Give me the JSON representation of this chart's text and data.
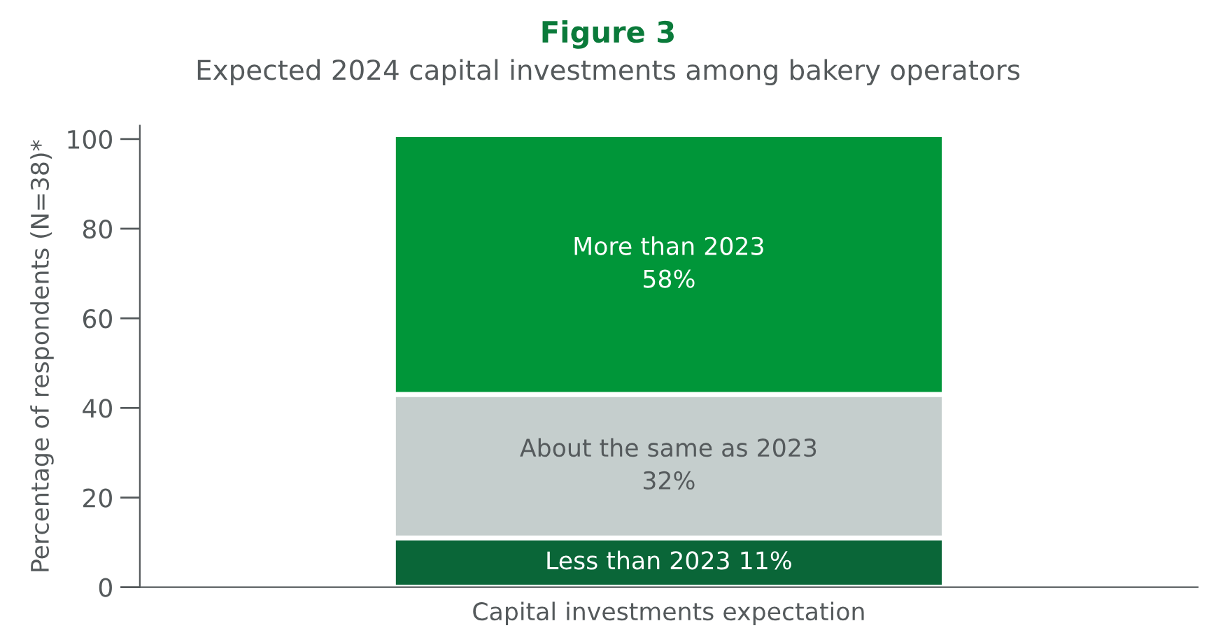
{
  "chart_data": {
    "type": "bar",
    "stacked": true,
    "title": "Figure 3",
    "subtitle": "Expected 2024 capital investments among bakery operators",
    "xlabel": "Capital investments expectation",
    "ylabel": "Percentage of respondents (N=38)*",
    "categories": [
      null
    ],
    "series": [
      {
        "name": "Less than 2023",
        "color": "#0a6638",
        "values": [
          11
        ],
        "value_labels": [
          "11%"
        ]
      },
      {
        "name": "About the same as 2023",
        "color": "#c5cecd",
        "values": [
          32
        ],
        "value_labels": [
          "32%"
        ]
      },
      {
        "name": "More than 2023",
        "color": "#009639",
        "values": [
          58
        ],
        "value_labels": [
          "58%"
        ]
      }
    ],
    "ylim": [
      0,
      103
    ],
    "yticks": [
      0,
      20,
      40,
      60,
      80,
      100
    ],
    "grid": false,
    "legend": false
  }
}
